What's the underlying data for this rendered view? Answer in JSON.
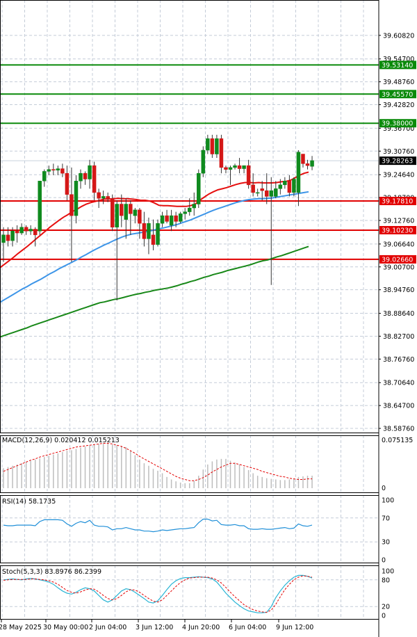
{
  "colors": {
    "grid": "#c4ccd8",
    "bull": "#0f8a1e",
    "bear": "#d41717",
    "ema_fast": "#e60f0f",
    "ema_mid": "#3d95e8",
    "ema_slow": "#188818",
    "green_level": "#0a8a0a",
    "red_level": "#e10000",
    "price_tag": "#000000",
    "macd_hist": "#bdbdbd",
    "macd_signal": "#e30000",
    "rsi_line": "#1f8fd8",
    "stoch_main": "#28b4d4",
    "stoch_signal": "#e30000"
  },
  "chart_data": [
    {
      "type": "candlestick",
      "title": "",
      "ylim": [
        38.575,
        39.7
      ],
      "y_ticks": [
        "39.60820",
        "39.54700",
        "39.48760",
        "39.42820",
        "39.36700",
        "39.30760",
        "39.24640",
        "39.18700",
        "39.12760",
        "39.06640",
        "39.00700",
        "38.94760",
        "38.88640",
        "38.82700",
        "38.76760",
        "38.70640",
        "38.64700",
        "38.58760"
      ],
      "x_labels": [
        "28 May 2025",
        "30 May 00:00",
        "2 Jun 04:00",
        "3 Jun 12:00",
        "4 Jun 20:00",
        "6 Jun 04:00",
        "9 Jun 12:00"
      ],
      "current_price": 39.28263,
      "current_price_label": "39.28263",
      "levels": [
        {
          "label": "39.53140",
          "value": 39.5314,
          "kind": "resistance"
        },
        {
          "label": "39.45570",
          "value": 39.4557,
          "kind": "resistance"
        },
        {
          "label": "39.38000",
          "value": 39.38,
          "kind": "resistance"
        },
        {
          "label": "39.17810",
          "value": 39.1781,
          "kind": "support"
        },
        {
          "label": "39.10230",
          "value": 39.1023,
          "kind": "support"
        },
        {
          "label": "39.02660",
          "value": 39.0266,
          "kind": "support"
        }
      ],
      "candles": [
        [
          39.07,
          39.11,
          39.02,
          39.09
        ],
        [
          39.09,
          39.11,
          39.06,
          39.075
        ],
        [
          39.075,
          39.11,
          39.06,
          39.1
        ],
        [
          39.1,
          39.115,
          39.07,
          39.095
        ],
        [
          39.095,
          39.12,
          39.09,
          39.11
        ],
        [
          39.11,
          39.115,
          39.09,
          39.1
        ],
        [
          39.1,
          39.115,
          39.09,
          39.105
        ],
        [
          39.105,
          39.11,
          39.06,
          39.09
        ],
        [
          39.1,
          39.23,
          39.09,
          39.23
        ],
        [
          39.23,
          39.26,
          39.215,
          39.255
        ],
        [
          39.255,
          39.27,
          39.245,
          39.26
        ],
        [
          39.26,
          39.275,
          39.245,
          39.258
        ],
        [
          39.258,
          39.27,
          39.245,
          39.262
        ],
        [
          39.262,
          39.275,
          39.24,
          39.25
        ],
        [
          39.25,
          39.27,
          39.18,
          39.195
        ],
        [
          39.195,
          39.265,
          39.02,
          39.14
        ],
        [
          39.14,
          39.245,
          39.12,
          39.23
        ],
        [
          39.23,
          39.26,
          39.21,
          39.25
        ],
        [
          39.25,
          39.255,
          39.22,
          39.235
        ],
        [
          39.235,
          39.285,
          39.21,
          39.27
        ],
        [
          39.27,
          39.28,
          39.18,
          39.2
        ],
        [
          39.2,
          39.21,
          39.16,
          39.185
        ],
        [
          39.185,
          39.205,
          39.17,
          39.19
        ],
        [
          39.19,
          39.2,
          39.175,
          39.183
        ],
        [
          39.185,
          39.195,
          39.1,
          39.11
        ],
        [
          39.11,
          39.18,
          38.92,
          39.17
        ],
        [
          39.17,
          39.195,
          39.11,
          39.14
        ],
        [
          39.13,
          39.185,
          39.08,
          39.17
        ],
        [
          39.17,
          39.18,
          39.09,
          39.145
        ],
        [
          39.14,
          39.16,
          39.12,
          39.155
        ],
        [
          39.155,
          39.16,
          39.08,
          39.12
        ],
        [
          39.12,
          39.15,
          39.06,
          39.08
        ],
        [
          39.08,
          39.135,
          39.04,
          39.12
        ],
        [
          39.09,
          39.13,
          39.05,
          39.065
        ],
        [
          39.065,
          39.13,
          39.06,
          39.12
        ],
        [
          39.12,
          39.15,
          39.11,
          39.14
        ],
        [
          39.14,
          39.155,
          39.12,
          39.125
        ],
        [
          39.115,
          39.155,
          39.1,
          39.14
        ],
        [
          39.14,
          39.15,
          39.11,
          39.125
        ],
        [
          39.125,
          39.15,
          39.12,
          39.145
        ],
        [
          39.145,
          39.16,
          39.13,
          39.15
        ],
        [
          39.15,
          39.185,
          39.14,
          39.16
        ],
        [
          39.16,
          39.2,
          39.14,
          39.17
        ],
        [
          39.17,
          39.26,
          39.16,
          39.25
        ],
        [
          39.25,
          39.32,
          39.24,
          39.31
        ],
        [
          39.31,
          39.35,
          39.3,
          39.34
        ],
        [
          39.34,
          39.35,
          39.29,
          39.3
        ],
        [
          39.3,
          39.35,
          39.29,
          39.34
        ],
        [
          39.34,
          39.35,
          39.25,
          39.265
        ],
        [
          39.265,
          39.27,
          39.25,
          39.26
        ],
        [
          39.26,
          39.27,
          39.22,
          39.265
        ],
        [
          39.265,
          39.275,
          39.26,
          39.27
        ],
        [
          39.27,
          39.29,
          39.25,
          39.262
        ],
        [
          39.262,
          39.27,
          39.25,
          39.27
        ],
        [
          39.27,
          39.285,
          39.21,
          39.22
        ],
        [
          39.22,
          39.25,
          39.19,
          39.2
        ],
        [
          39.2,
          39.21,
          39.19,
          39.2
        ],
        [
          39.21,
          39.23,
          39.18,
          39.205
        ],
        [
          39.205,
          39.25,
          39.17,
          39.19
        ],
        [
          39.19,
          39.24,
          38.96,
          39.205
        ],
        [
          39.19,
          39.23,
          39.185,
          39.21
        ],
        [
          39.21,
          39.235,
          39.195,
          39.22
        ],
        [
          39.22,
          39.24,
          39.21,
          39.23
        ],
        [
          39.23,
          39.245,
          39.19,
          39.2
        ],
        [
          39.2,
          39.24,
          39.19,
          39.235
        ],
        [
          39.2,
          39.31,
          39.165,
          39.305
        ],
        [
          39.3,
          39.3,
          39.265,
          39.275
        ],
        [
          39.275,
          39.285,
          39.26,
          39.27
        ],
        [
          39.268,
          39.295,
          39.258,
          39.283
        ]
      ],
      "ema": [
        {
          "name": "ema_fast",
          "color": "#e60f0f",
          "values": [
            39.005,
            39.014,
            39.023,
            39.032,
            39.042,
            39.051,
            39.06,
            39.07,
            39.08,
            39.09,
            39.1,
            39.11,
            39.119,
            39.128,
            39.136,
            39.143,
            39.151,
            39.157,
            39.164,
            39.17,
            39.174,
            39.177,
            39.18,
            39.183,
            39.183,
            39.184,
            39.185,
            39.184,
            39.184,
            39.183,
            39.182,
            39.18,
            39.18,
            39.178,
            39.173,
            39.167,
            39.166,
            39.166,
            39.165,
            39.164,
            39.164,
            39.164,
            39.166,
            39.17,
            39.18,
            39.188,
            39.196,
            39.202,
            39.207,
            39.21,
            39.213,
            39.217,
            39.221,
            39.224,
            39.226,
            39.226,
            39.225,
            39.226,
            39.225,
            39.225,
            39.225,
            39.226,
            39.228,
            39.229,
            39.232,
            39.238,
            39.245,
            39.25,
            39.253
          ]
        },
        {
          "name": "ema_mid",
          "color": "#3d95e8",
          "values": [
            38.915,
            38.922,
            38.929,
            38.936,
            38.943,
            38.95,
            38.956,
            38.963,
            38.969,
            38.975,
            38.982,
            38.989,
            38.995,
            39.002,
            39.008,
            39.014,
            39.02,
            39.026,
            39.033,
            39.039,
            39.046,
            39.052,
            39.058,
            39.064,
            39.069,
            39.075,
            39.08,
            39.085,
            39.089,
            39.092,
            39.094,
            39.096,
            39.098,
            39.1,
            39.103,
            39.106,
            39.108,
            39.111,
            39.114,
            39.117,
            39.121,
            39.125,
            39.129,
            39.134,
            39.139,
            39.144,
            39.149,
            39.154,
            39.158,
            39.162,
            39.166,
            39.17,
            39.174,
            39.177,
            39.18,
            39.182,
            39.183,
            39.184,
            39.184,
            39.185,
            39.186,
            39.188,
            39.19,
            39.192,
            39.194,
            39.196,
            39.198,
            39.2,
            39.202
          ]
        },
        {
          "name": "ema_slow",
          "color": "#188818",
          "values": [
            38.825,
            38.829,
            38.833,
            38.837,
            38.841,
            38.845,
            38.849,
            38.854,
            38.858,
            38.862,
            38.866,
            38.87,
            38.874,
            38.878,
            38.882,
            38.886,
            38.89,
            38.894,
            38.898,
            38.902,
            38.906,
            38.91,
            38.914,
            38.916,
            38.919,
            38.922,
            38.924,
            38.927,
            38.93,
            38.933,
            38.936,
            38.938,
            38.941,
            38.943,
            38.946,
            38.948,
            38.95,
            38.952,
            38.955,
            38.958,
            38.962,
            38.965,
            38.969,
            38.972,
            38.976,
            38.98,
            38.983,
            38.987,
            38.99,
            38.993,
            38.997,
            39.0,
            39.003,
            39.006,
            39.009,
            39.012,
            39.016,
            39.02,
            39.023,
            39.025,
            39.029,
            39.033,
            39.036,
            39.04,
            39.044,
            39.048,
            39.052,
            39.056,
            39.06
          ]
        }
      ]
    },
    {
      "type": "histogram+line",
      "label": "MACD(12,26,9) 0.020412 0.015213",
      "ylim": [
        0,
        0.077
      ],
      "y_ticks": [
        "0.075135",
        "0"
      ],
      "histogram": [
        0.032,
        0.034,
        0.036,
        0.038,
        0.04,
        0.042,
        0.044,
        0.046,
        0.048,
        0.05,
        0.052,
        0.054,
        0.056,
        0.058,
        0.06,
        0.061,
        0.063,
        0.065,
        0.067,
        0.069,
        0.07,
        0.071,
        0.072,
        0.073,
        0.07,
        0.069,
        0.068,
        0.066,
        0.06,
        0.053,
        0.046,
        0.04,
        0.036,
        0.031,
        0.028,
        0.024,
        0.018,
        0.014,
        0.011,
        0.009,
        0.008,
        0.008,
        0.012,
        0.02,
        0.03,
        0.038,
        0.043,
        0.046,
        0.047,
        0.047,
        0.044,
        0.041,
        0.038,
        0.034,
        0.029,
        0.024,
        0.02,
        0.018,
        0.016,
        0.015,
        0.014,
        0.013,
        0.013,
        0.014,
        0.015,
        0.018,
        0.019,
        0.02,
        0.02
      ],
      "signal": [
        0.027,
        0.03,
        0.033,
        0.036,
        0.039,
        0.042,
        0.045,
        0.047,
        0.05,
        0.052,
        0.054,
        0.056,
        0.058,
        0.06,
        0.062,
        0.064,
        0.066,
        0.067,
        0.068,
        0.069,
        0.07,
        0.071,
        0.072,
        0.072,
        0.071,
        0.069,
        0.067,
        0.064,
        0.06,
        0.056,
        0.051,
        0.047,
        0.043,
        0.039,
        0.035,
        0.031,
        0.027,
        0.023,
        0.019,
        0.016,
        0.014,
        0.012,
        0.012,
        0.014,
        0.017,
        0.021,
        0.026,
        0.03,
        0.034,
        0.037,
        0.04,
        0.04,
        0.038,
        0.036,
        0.034,
        0.032,
        0.03,
        0.027,
        0.025,
        0.023,
        0.021,
        0.019,
        0.018,
        0.016,
        0.015,
        0.014,
        0.014,
        0.015,
        0.015
      ]
    },
    {
      "type": "line",
      "label": "RSI(14) 58.1735",
      "ylim": [
        0,
        100
      ],
      "y_ticks": [
        "100",
        "70",
        "30",
        "0"
      ],
      "values": [
        58,
        57,
        57,
        58,
        58,
        58,
        58,
        57,
        64,
        67,
        67,
        67,
        67,
        66,
        60,
        56,
        61,
        64,
        62,
        66,
        58,
        56,
        56,
        55,
        50,
        52,
        52,
        54,
        52,
        50,
        50,
        48,
        48,
        47,
        48,
        50,
        49,
        50,
        51,
        52,
        52,
        53,
        54,
        62,
        68,
        68,
        65,
        66,
        59,
        58,
        58,
        59,
        57,
        57,
        52,
        51,
        51,
        52,
        51,
        51,
        52,
        53,
        54,
        52,
        53,
        60,
        57,
        56,
        58
      ]
    },
    {
      "type": "line",
      "label": "Stoch(5,3,3) 83.8976 86.2399",
      "ylim": [
        0,
        100
      ],
      "y_ticks": [
        "100",
        "80",
        "20",
        "0"
      ],
      "main": [
        80,
        81,
        82,
        81,
        80,
        82,
        83,
        82,
        80,
        78,
        75,
        70,
        62,
        55,
        50,
        48,
        52,
        58,
        62,
        60,
        55,
        45,
        35,
        30,
        35,
        45,
        55,
        60,
        58,
        52,
        45,
        38,
        30,
        28,
        33,
        45,
        58,
        70,
        78,
        83,
        85,
        85,
        86,
        87,
        86,
        85,
        82,
        75,
        63,
        50,
        40,
        30,
        22,
        15,
        10,
        8,
        6,
        6,
        7,
        20,
        40,
        55,
        68,
        78,
        86,
        90,
        90,
        88,
        84
      ],
      "signal": [
        79,
        80,
        81,
        81,
        81,
        81,
        82,
        82,
        81,
        80,
        78,
        75,
        70,
        63,
        56,
        52,
        50,
        53,
        57,
        60,
        59,
        53,
        45,
        38,
        35,
        38,
        45,
        53,
        58,
        57,
        52,
        45,
        38,
        32,
        30,
        35,
        45,
        55,
        65,
        74,
        80,
        84,
        85,
        86,
        86,
        86,
        84,
        80,
        73,
        63,
        52,
        42,
        33,
        24,
        18,
        13,
        10,
        8,
        7,
        12,
        25,
        42,
        58,
        70,
        80,
        86,
        89,
        88,
        86
      ]
    }
  ]
}
